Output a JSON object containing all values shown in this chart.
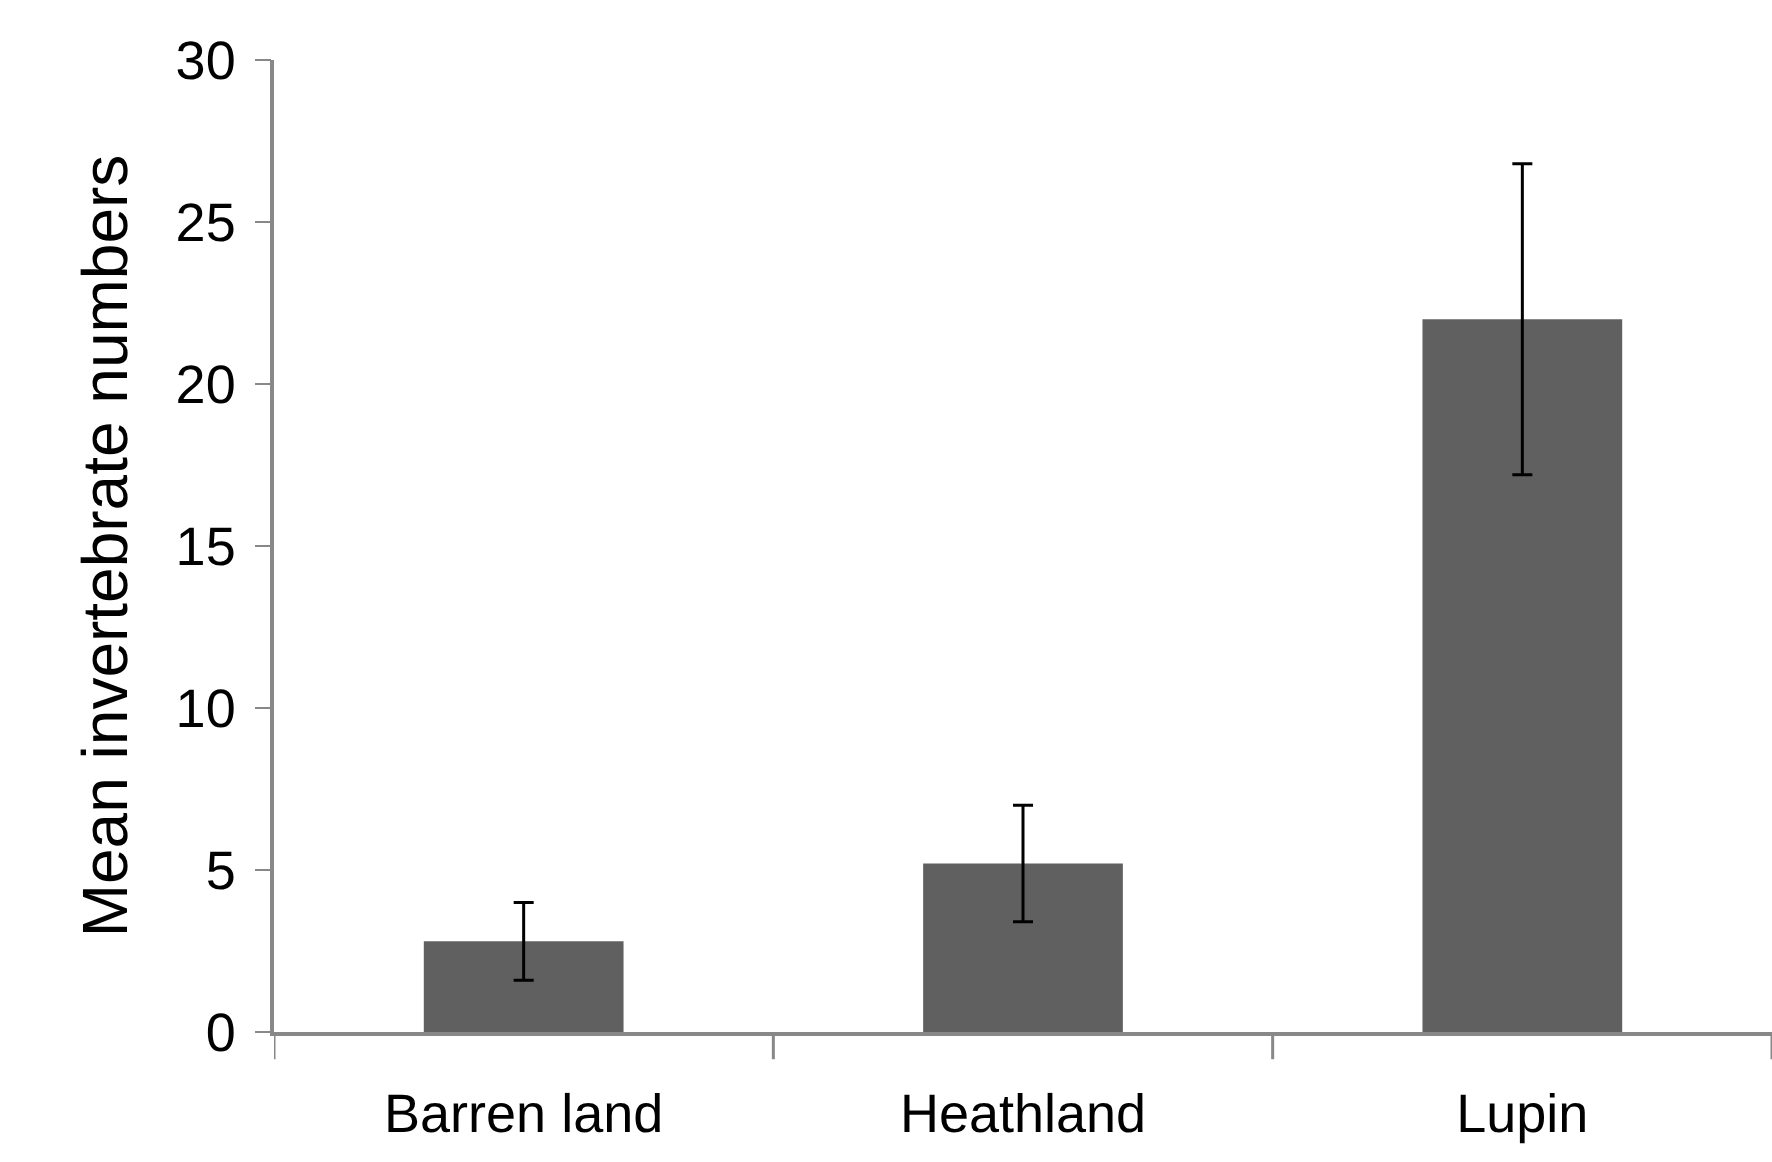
{
  "chart_data": {
    "type": "bar",
    "ylabel": "Mean invertebrate numbers",
    "categories": [
      "Barren land",
      "Heathland",
      "Lupin"
    ],
    "values": [
      2.8,
      5.2,
      22.0
    ],
    "errors": [
      1.2,
      1.8,
      4.8
    ],
    "color": "#606060",
    "ylim": [
      0,
      30
    ],
    "yticks": [
      0,
      5,
      10,
      15,
      20,
      25,
      30
    ],
    "grid": false
  }
}
